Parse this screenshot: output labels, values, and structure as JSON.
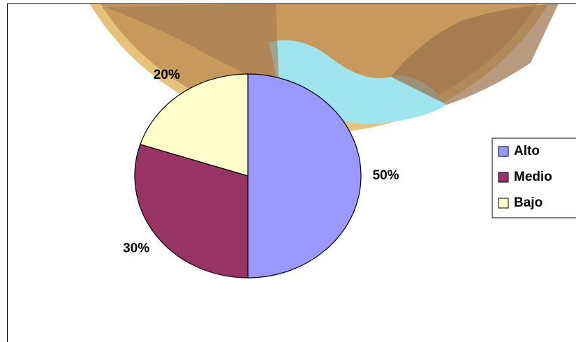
{
  "chart_data": {
    "type": "pie",
    "categories": [
      "Alto",
      "Medio",
      "Bajo"
    ],
    "values": [
      50,
      30,
      20
    ],
    "value_labels": [
      "50%",
      "30%",
      "20%"
    ],
    "colors": [
      "#9999ff",
      "#993366",
      "#ffffcc"
    ],
    "legend": "right"
  }
}
